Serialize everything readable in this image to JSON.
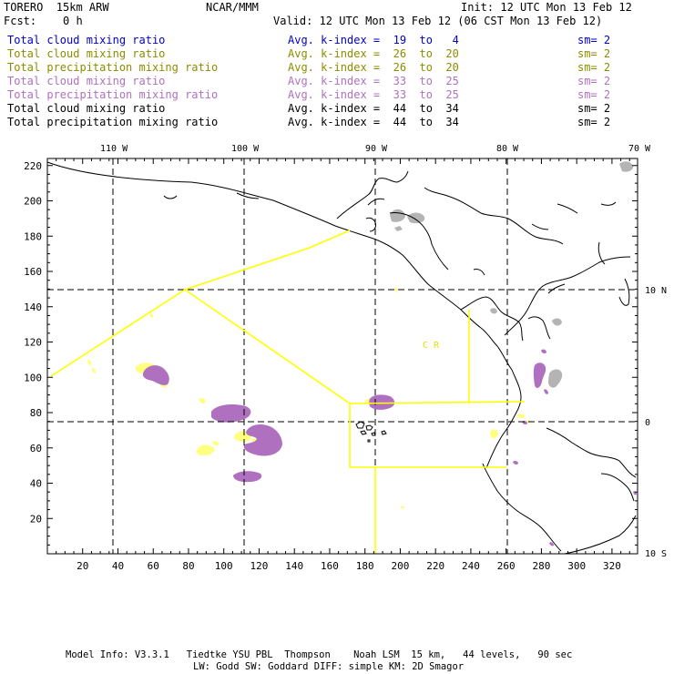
{
  "header": {
    "model": "TORERO  15km ARW",
    "org": "NCAR/MMM",
    "init": "Init: 12 UTC Mon 13 Feb 12",
    "fcst": "Fcst:    0 h",
    "valid": "Valid: 12 UTC Mon 13 Feb 12 (06 CST Mon 13 Feb 12)"
  },
  "legend": [
    {
      "field": "Total cloud mixing ratio",
      "kindex": "Avg. k-index =  19  to   4",
      "sm": "sm= 2",
      "color": "#0000cc"
    },
    {
      "field": "Total cloud mixing ratio",
      "kindex": "Avg. k-index =  26  to  20",
      "sm": "sm= 2",
      "color": "#8c8c00"
    },
    {
      "field": "Total precipitation mixing ratio",
      "kindex": "Avg. k-index =  26  to  20",
      "sm": "sm= 2",
      "color": "#8c8c00"
    },
    {
      "field": "Total cloud mixing ratio",
      "kindex": "Avg. k-index =  33  to  25",
      "sm": "sm= 2",
      "color": "#b070c0"
    },
    {
      "field": "Total precipitation mixing ratio",
      "kindex": "Avg. k-index =  33  to  25",
      "sm": "sm= 2",
      "color": "#b070c0"
    },
    {
      "field": "Total cloud mixing ratio",
      "kindex": "Avg. k-index =  44  to  34",
      "sm": "sm= 2",
      "color": "#000000"
    },
    {
      "field": "Total precipitation mixing ratio",
      "kindex": "Avg. k-index =  44  to  34",
      "sm": "sm= 2",
      "color": "#000000"
    }
  ],
  "map": {
    "x_ticks": [
      20,
      40,
      60,
      80,
      100,
      120,
      140,
      160,
      180,
      200,
      220,
      240,
      260,
      280,
      300,
      320
    ],
    "y_ticks": [
      20,
      40,
      60,
      80,
      100,
      120,
      140,
      160,
      180,
      200,
      220
    ],
    "lon_labels": [
      "110 W",
      "100 W",
      "90 W",
      "80 W",
      "70 W"
    ],
    "lat_labels": [
      "10 N",
      "0",
      "10 S"
    ],
    "region_label": "C  R",
    "colors": {
      "light_yellow": "#ffff80",
      "purple": "#b070c0",
      "gray": "#b4b4b4",
      "boundary": "#ffff00"
    }
  },
  "footer": {
    "line1": "Model Info: V3.3.1   Tiedtke YSU PBL  Thompson    Noah LSM  15 km,   44 levels,   90 sec",
    "line2": "LW: Godd SW: Goddard DIFF: simple KM: 2D Smagor"
  }
}
